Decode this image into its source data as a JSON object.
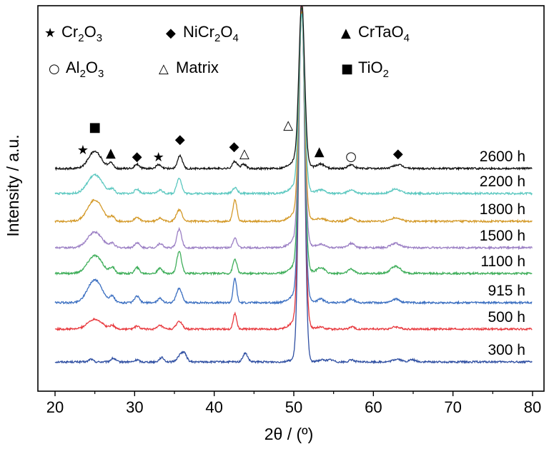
{
  "chart_data": {
    "type": "line",
    "xlabel": "2θ / (º)",
    "ylabel": "Intensity / a.u.",
    "xlim": [
      20,
      80
    ],
    "x_ticks": [
      "20",
      "30",
      "40",
      "50",
      "60",
      "70",
      "80"
    ],
    "grid": false,
    "legend": [
      {
        "name": "Cr2O3",
        "text": "Cr",
        "sub1": "2",
        "mid": "O",
        "sub2": "3",
        "symbol": "star",
        "glyph": "★"
      },
      {
        "name": "NiCr2O4",
        "text": "NiCr",
        "sub1": "2",
        "mid": "O",
        "sub2": "4",
        "symbol": "diamond",
        "glyph": "◆"
      },
      {
        "name": "CrTaO4",
        "text": "CrTaO",
        "sub1": "4",
        "mid": "",
        "sub2": "",
        "symbol": "triangle-filled",
        "glyph": "▲"
      },
      {
        "name": "Al2O3",
        "text": "Al",
        "sub1": "2",
        "mid": "O",
        "sub2": "3",
        "symbol": "circle-open",
        "glyph": "○"
      },
      {
        "name": "Matrix",
        "text": "Matrix",
        "sub1": "",
        "mid": "",
        "sub2": "",
        "symbol": "triangle-open",
        "glyph": "△"
      },
      {
        "name": "TiO2",
        "text": "TiO",
        "sub1": "2",
        "mid": "",
        "sub2": "",
        "symbol": "square-filled",
        "glyph": "■"
      }
    ],
    "series": [
      {
        "name": "300 h",
        "label": "300 h",
        "color": "#2f4fa2",
        "peaks": [
          [
            24.5,
            4,
            0.25
          ],
          [
            27.3,
            5,
            0.3
          ],
          [
            30.3,
            3,
            0.25
          ],
          [
            33.4,
            6,
            0.3
          ],
          [
            35.8,
            10,
            0.4
          ],
          [
            36.3,
            8,
            0.3
          ],
          [
            43.9,
            12,
            0.3
          ],
          [
            51.0,
            520,
            0.35
          ],
          [
            53.5,
            3,
            0.4
          ],
          [
            54.6,
            3,
            0.4
          ],
          [
            57.3,
            3,
            0.3
          ],
          [
            63.0,
            4,
            0.5
          ],
          [
            64.9,
            3,
            0.4
          ]
        ]
      },
      {
        "name": "500 h",
        "label": "500 h",
        "color": "#e8383d",
        "peaks": [
          [
            25.0,
            14,
            0.9
          ],
          [
            27.2,
            5,
            0.3
          ],
          [
            30.3,
            4,
            0.3
          ],
          [
            33.2,
            5,
            0.3
          ],
          [
            35.6,
            11,
            0.35
          ],
          [
            42.6,
            22,
            0.22
          ],
          [
            51.0,
            460,
            0.35
          ],
          [
            53.4,
            3,
            0.4
          ],
          [
            57.3,
            3,
            0.3
          ],
          [
            62.8,
            3,
            0.5
          ]
        ]
      },
      {
        "name": "915 h",
        "label": "915 h",
        "color": "#3b6fc1",
        "peaks": [
          [
            25.0,
            32,
            0.9
          ],
          [
            27.2,
            8,
            0.3
          ],
          [
            30.3,
            9,
            0.3
          ],
          [
            33.2,
            6,
            0.3
          ],
          [
            35.6,
            20,
            0.35
          ],
          [
            42.6,
            34,
            0.22
          ],
          [
            51.0,
            400,
            0.35
          ],
          [
            53.4,
            5,
            0.4
          ],
          [
            57.2,
            5,
            0.4
          ],
          [
            62.8,
            5,
            0.5
          ]
        ]
      },
      {
        "name": "1100 h",
        "label": "1100 h",
        "color": "#3fae5a",
        "peaks": [
          [
            25.0,
            25,
            0.9
          ],
          [
            27.2,
            8,
            0.3
          ],
          [
            30.3,
            8,
            0.3
          ],
          [
            33.2,
            7,
            0.3
          ],
          [
            35.6,
            30,
            0.3
          ],
          [
            42.6,
            20,
            0.25
          ],
          [
            51.0,
            360,
            0.35
          ],
          [
            53.4,
            8,
            0.5
          ],
          [
            57.2,
            6,
            0.4
          ],
          [
            62.8,
            10,
            0.6
          ]
        ]
      },
      {
        "name": "1500 h",
        "label": "1500 h",
        "color": "#9b7fc4",
        "peaks": [
          [
            25.0,
            22,
            0.9
          ],
          [
            27.2,
            6,
            0.3
          ],
          [
            30.3,
            7,
            0.3
          ],
          [
            33.2,
            6,
            0.3
          ],
          [
            35.6,
            26,
            0.3
          ],
          [
            42.6,
            14,
            0.25
          ],
          [
            51.0,
            320,
            0.35
          ],
          [
            53.4,
            5,
            0.5
          ],
          [
            57.2,
            6,
            0.4
          ],
          [
            62.8,
            6,
            0.6
          ]
        ]
      },
      {
        "name": "1800 h",
        "label": "1800 h",
        "color": "#d49a2a",
        "peaks": [
          [
            25.0,
            30,
            0.9
          ],
          [
            27.2,
            6,
            0.3
          ],
          [
            30.3,
            6,
            0.3
          ],
          [
            33.2,
            5,
            0.3
          ],
          [
            35.6,
            16,
            0.35
          ],
          [
            42.6,
            30,
            0.25
          ],
          [
            51.0,
            280,
            0.35
          ],
          [
            53.4,
            4,
            0.5
          ],
          [
            57.2,
            5,
            0.4
          ],
          [
            62.8,
            5,
            0.6
          ]
        ]
      },
      {
        "name": "2200 h",
        "label": "2200 h",
        "color": "#5cc8c0",
        "peaks": [
          [
            25.0,
            26,
            0.9
          ],
          [
            27.2,
            6,
            0.3
          ],
          [
            30.3,
            6,
            0.3
          ],
          [
            33.2,
            5,
            0.3
          ],
          [
            35.6,
            22,
            0.3
          ],
          [
            42.6,
            8,
            0.3
          ],
          [
            51.0,
            240,
            0.35
          ],
          [
            53.4,
            5,
            0.5
          ],
          [
            57.2,
            5,
            0.4
          ],
          [
            62.8,
            6,
            0.6
          ]
        ]
      },
      {
        "name": "2600 h",
        "label": "2600 h",
        "color": "#111111",
        "peaks": [
          [
            25.0,
            24,
            0.8
          ],
          [
            27.0,
            8,
            0.3
          ],
          [
            30.3,
            6,
            0.3
          ],
          [
            33.0,
            5,
            0.3
          ],
          [
            35.7,
            18,
            0.3
          ],
          [
            42.6,
            10,
            0.3
          ],
          [
            43.7,
            6,
            0.3
          ],
          [
            51.0,
            220,
            0.35
          ],
          [
            53.4,
            6,
            0.5
          ],
          [
            57.2,
            5,
            0.4
          ],
          [
            63.1,
            5,
            0.6
          ]
        ]
      }
    ],
    "annotations": [
      {
        "glyph": "■",
        "x": 25.0,
        "type": "TiO2"
      },
      {
        "glyph": "★",
        "x": 23.5,
        "type": "Cr2O3"
      },
      {
        "glyph": "▲",
        "x": 27.0,
        "type": "CrTaO4"
      },
      {
        "glyph": "◆",
        "x": 30.3,
        "type": "NiCr2O4"
      },
      {
        "glyph": "★",
        "x": 33.0,
        "type": "Cr2O3"
      },
      {
        "glyph": "◆",
        "x": 35.7,
        "type": "NiCr2O4"
      },
      {
        "glyph": "◆",
        "x": 42.5,
        "type": "NiCr2O4"
      },
      {
        "glyph": "△",
        "x": 43.8,
        "type": "Matrix"
      },
      {
        "glyph": "△",
        "x": 49.3,
        "type": "Matrix"
      },
      {
        "glyph": "▲",
        "x": 53.2,
        "type": "CrTaO4"
      },
      {
        "glyph": "○",
        "x": 57.2,
        "type": "Al2O3"
      },
      {
        "glyph": "◆",
        "x": 63.1,
        "type": "NiCr2O4"
      }
    ]
  }
}
